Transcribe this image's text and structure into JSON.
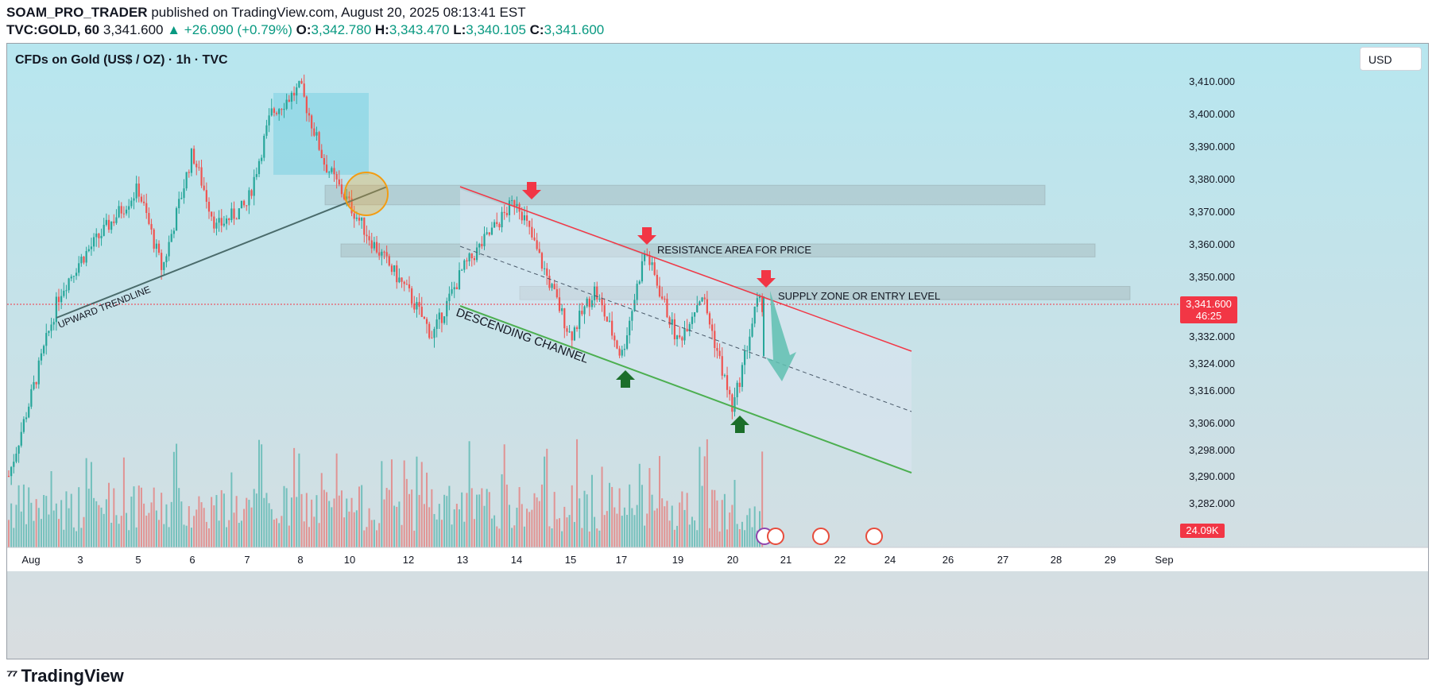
{
  "header": {
    "publisher": "SOAM_PRO_TRADER",
    "published_text": "published on TradingView.com, August 20, 2025 08:13:41 EST",
    "symbol": "TVC:GOLD, 60",
    "last": "3,341.600",
    "change": "▲ +26.090 (+0.79%)",
    "o_label": "O:",
    "o": "3,342.780",
    "h_label": "H:",
    "h": "3,343.470",
    "l_label": "L:",
    "l": "3,340.105",
    "c_label": "C:",
    "c": "3,341.600"
  },
  "chart_title": "CFDs on Gold (US$ / OZ) · 1h · TVC",
  "currency_button": "USD",
  "price_tag": {
    "price": "3,341.600",
    "countdown": "46:25"
  },
  "volume_tag": "24.09K",
  "footer_brand": "TradingView",
  "annotations": {
    "upward_trendline": "UPWARD TRENDLINE",
    "descending_channel": "DESCENDING CHANNEL",
    "resistance": "RESISTANCE AREA FOR PRICE",
    "supply": "SUPPLY ZONE OR ENTRY LEVEL"
  },
  "colors": {
    "up": "#26a69a",
    "down": "#ef5350",
    "current_price": "#f23645",
    "channel_upper": "#f23645",
    "channel_lower": "#4caf50",
    "trendline": "#4a6b6b",
    "arrow_red": "#f23645",
    "arrow_green": "#1b6e2a",
    "projection": "#5fbfb0",
    "bg_top": "#b7e6ef",
    "bg_bottom": "#d9dde0"
  },
  "chart_data": {
    "type": "candlestick",
    "y_axis_labels": [
      "3,410.000",
      "3,400.000",
      "3,390.000",
      "3,380.000",
      "3,370.000",
      "3,360.000",
      "3,350.000",
      "3,332.000",
      "3,324.000",
      "3,316.000",
      "3,306.000",
      "3,298.000",
      "3,290.000",
      "3,282.000"
    ],
    "y_axis_values": [
      3410,
      3400,
      3390,
      3380,
      3370,
      3360,
      3350,
      3332,
      3324,
      3316,
      3306,
      3298,
      3290,
      3282
    ],
    "x_axis_labels": [
      "Aug",
      "3",
      "5",
      "6",
      "7",
      "8",
      "10",
      "12",
      "13",
      "14",
      "15",
      "17",
      "19",
      "20",
      "21",
      "22",
      "24",
      "26",
      "27",
      "28",
      "29",
      "Sep"
    ],
    "price_path": [
      {
        "date": "Aug 1",
        "price": 3290
      },
      {
        "date": "Aug 1",
        "price": 3345
      },
      {
        "date": "Aug 3",
        "price": 3355
      },
      {
        "date": "Aug 5",
        "price": 3377
      },
      {
        "date": "Aug 5",
        "price": 3352
      },
      {
        "date": "Aug 6",
        "price": 3388
      },
      {
        "date": "Aug 6",
        "price": 3365
      },
      {
        "date": "Aug 7",
        "price": 3372
      },
      {
        "date": "Aug 7",
        "price": 3400
      },
      {
        "date": "Aug 8",
        "price": 3408
      },
      {
        "date": "Aug 8",
        "price": 3385
      },
      {
        "date": "Aug 10",
        "price": 3372
      },
      {
        "date": "Aug 10",
        "price": 3360
      },
      {
        "date": "Aug 12",
        "price": 3345
      },
      {
        "date": "Aug 12",
        "price": 3332
      },
      {
        "date": "Aug 13",
        "price": 3352
      },
      {
        "date": "Aug 14",
        "price": 3374
      },
      {
        "date": "Aug 14",
        "price": 3355
      },
      {
        "date": "Aug 15",
        "price": 3332
      },
      {
        "date": "Aug 15",
        "price": 3346
      },
      {
        "date": "Aug 17",
        "price": 3326
      },
      {
        "date": "Aug 17",
        "price": 3358
      },
      {
        "date": "Aug 19",
        "price": 3330
      },
      {
        "date": "Aug 19",
        "price": 3345
      },
      {
        "date": "Aug 20",
        "price": 3310
      },
      {
        "date": "Aug 20",
        "price": 3341.6
      }
    ],
    "last_price": 3341.6,
    "zones": [
      {
        "name": "upper",
        "from": 3372,
        "to": 3378
      },
      {
        "name": "resistance",
        "from": 3356,
        "to": 3360
      },
      {
        "name": "supply",
        "from": 3343,
        "to": 3347
      }
    ],
    "grid": false,
    "background": "gradient"
  }
}
